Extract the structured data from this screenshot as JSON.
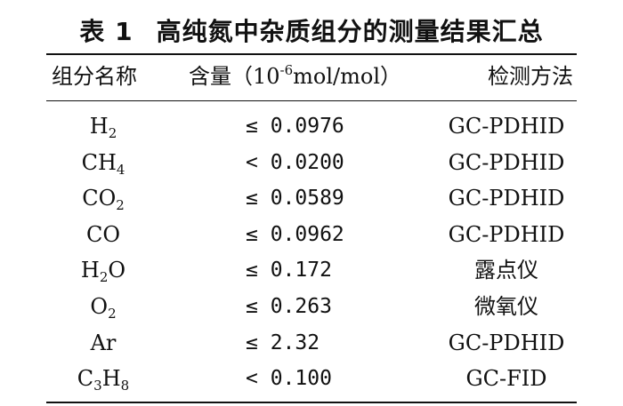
{
  "table": {
    "caption_number": "表 1",
    "caption_text": "高纯氮中杂质组分的测量结果汇总",
    "headers": {
      "component": "组分名称",
      "content_prefix": "含量（10",
      "content_exp": "-6",
      "content_suffix": "mol/mol）",
      "method": "检测方法"
    },
    "rows": [
      {
        "name": [
          {
            "t": "H"
          },
          {
            "sub": "2"
          }
        ],
        "value": "≤ 0.0976",
        "method": "GC-PDHID"
      },
      {
        "name": [
          {
            "t": "CH"
          },
          {
            "sub": "4"
          }
        ],
        "value": "< 0.0200",
        "method": "GC-PDHID"
      },
      {
        "name": [
          {
            "t": "CO"
          },
          {
            "sub": "2"
          }
        ],
        "value": "≤ 0.0589",
        "method": "GC-PDHID"
      },
      {
        "name": [
          {
            "t": "CO"
          }
        ],
        "value": "≤ 0.0962",
        "method": "GC-PDHID"
      },
      {
        "name": [
          {
            "t": "H"
          },
          {
            "sub": "2"
          },
          {
            "t": "O"
          }
        ],
        "value": "≤ 0.172",
        "method": "露点仪"
      },
      {
        "name": [
          {
            "t": "O"
          },
          {
            "sub": "2"
          }
        ],
        "value": "≤ 0.263",
        "method": "微氧仪"
      },
      {
        "name": [
          {
            "t": "Ar"
          }
        ],
        "value": "≤ 2.32",
        "method": "GC-PDHID"
      },
      {
        "name": [
          {
            "t": "C"
          },
          {
            "sub": "3"
          },
          {
            "t": "H"
          },
          {
            "sub": "8"
          }
        ],
        "value": "< 0.100",
        "method": "GC-FID"
      }
    ]
  }
}
